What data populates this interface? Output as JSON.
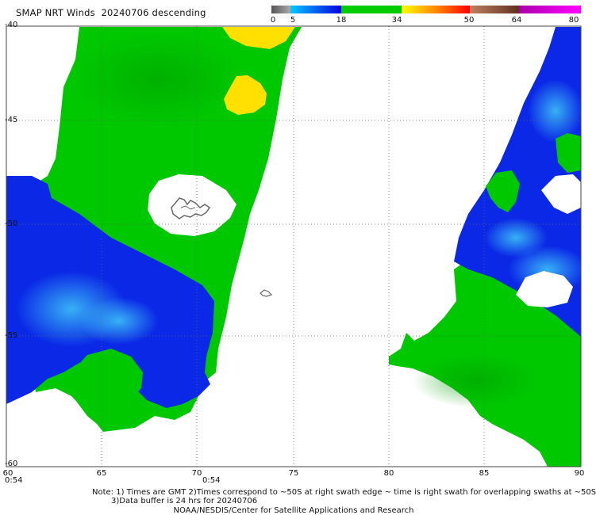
{
  "title": "SMAP NRT Winds  20240706 descending",
  "colorbar": {
    "labels": [
      "0",
      "5",
      "18",
      "34",
      "50",
      "64",
      "80"
    ],
    "segments": [
      {
        "from": 0,
        "to": 5,
        "colors": [
          "#555555",
          "#aaaaaa"
        ]
      },
      {
        "from": 5,
        "to": 18,
        "colors": [
          "#00c8ff",
          "#0000e0"
        ]
      },
      {
        "from": 18,
        "to": 34,
        "colors": [
          "#00cc00",
          "#00cc00"
        ]
      },
      {
        "from": 34,
        "to": 50,
        "colors": [
          "#ffff00",
          "#ff8800",
          "#ff0000"
        ]
      },
      {
        "from": 50,
        "to": 64,
        "colors": [
          "#c08060",
          "#603020"
        ]
      },
      {
        "from": 64,
        "to": 80,
        "colors": [
          "#aa00aa",
          "#ff00ff"
        ]
      }
    ]
  },
  "axes": {
    "lat_labels": [
      "-40",
      "-45",
      "-50",
      "-55",
      "-60"
    ],
    "lon_labels": [
      "60",
      "65",
      "70",
      "75",
      "80",
      "85",
      "90"
    ],
    "lat_range": [
      -60,
      -40
    ],
    "lon_range": [
      60,
      90
    ]
  },
  "swath_times": [
    "0:54",
    "0:54"
  ],
  "notes": {
    "line1": "Note: 1) Times are GMT 2)Times correspond to ~50S at right swath edge ~ time is right swath for overlapping swaths at ~50S",
    "line2": "3)Data buffer is 24 hrs for 20240706"
  },
  "footer": "NOAA/NESDIS/Center for Satellite Applications and Research",
  "colors": {
    "green": "#00c800",
    "blue_dark": "#0a28e6",
    "blue_light": "#2aa6f0",
    "yellow": "#ffe000",
    "land_outline": "#666666"
  }
}
